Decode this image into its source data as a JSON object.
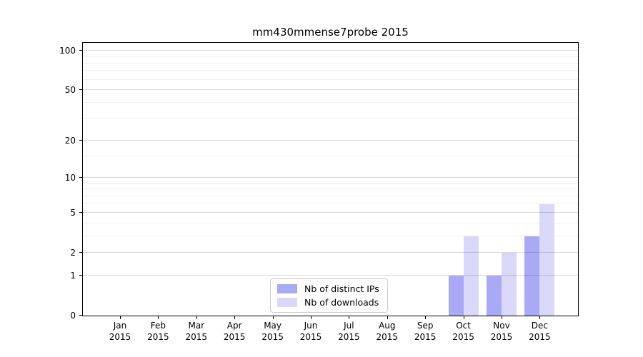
{
  "chart_data": {
    "type": "bar",
    "title": "mm430mmense7probe 2015",
    "categories": [
      "Jan",
      "Feb",
      "Mar",
      "Apr",
      "May",
      "Jun",
      "Jul",
      "Aug",
      "Sep",
      "Oct",
      "Nov",
      "Dec"
    ],
    "category_sublabel": "2015",
    "series": [
      {
        "name": "Nb of distinct IPs",
        "color": "#a9a9f6",
        "values": [
          0,
          0,
          0,
          0,
          0,
          0,
          0,
          0,
          0,
          1,
          1,
          3
        ]
      },
      {
        "name": "Nb of downloads",
        "color": "#d9d8f8",
        "values": [
          0,
          0,
          0,
          0,
          0,
          0,
          0,
          0,
          0,
          3,
          2,
          6
        ]
      }
    ],
    "xlabel": "",
    "ylabel": "",
    "y_axis": {
      "scale": "log1p",
      "ticks": [
        0,
        1,
        2,
        5,
        10,
        20,
        50,
        100
      ],
      "minor_ticks": [
        3,
        4,
        6,
        7,
        8,
        9,
        15,
        30,
        40,
        60,
        70,
        80,
        90
      ],
      "ylim": [
        0,
        115
      ]
    },
    "grid": true,
    "legend_position": "lower-center-inside"
  },
  "colors": {
    "background": "#ffffff",
    "axis": "#000000",
    "gridline_major": "#d6d6d6",
    "gridline_minor": "#f0f0f0",
    "legend_border": "#cccccc"
  }
}
